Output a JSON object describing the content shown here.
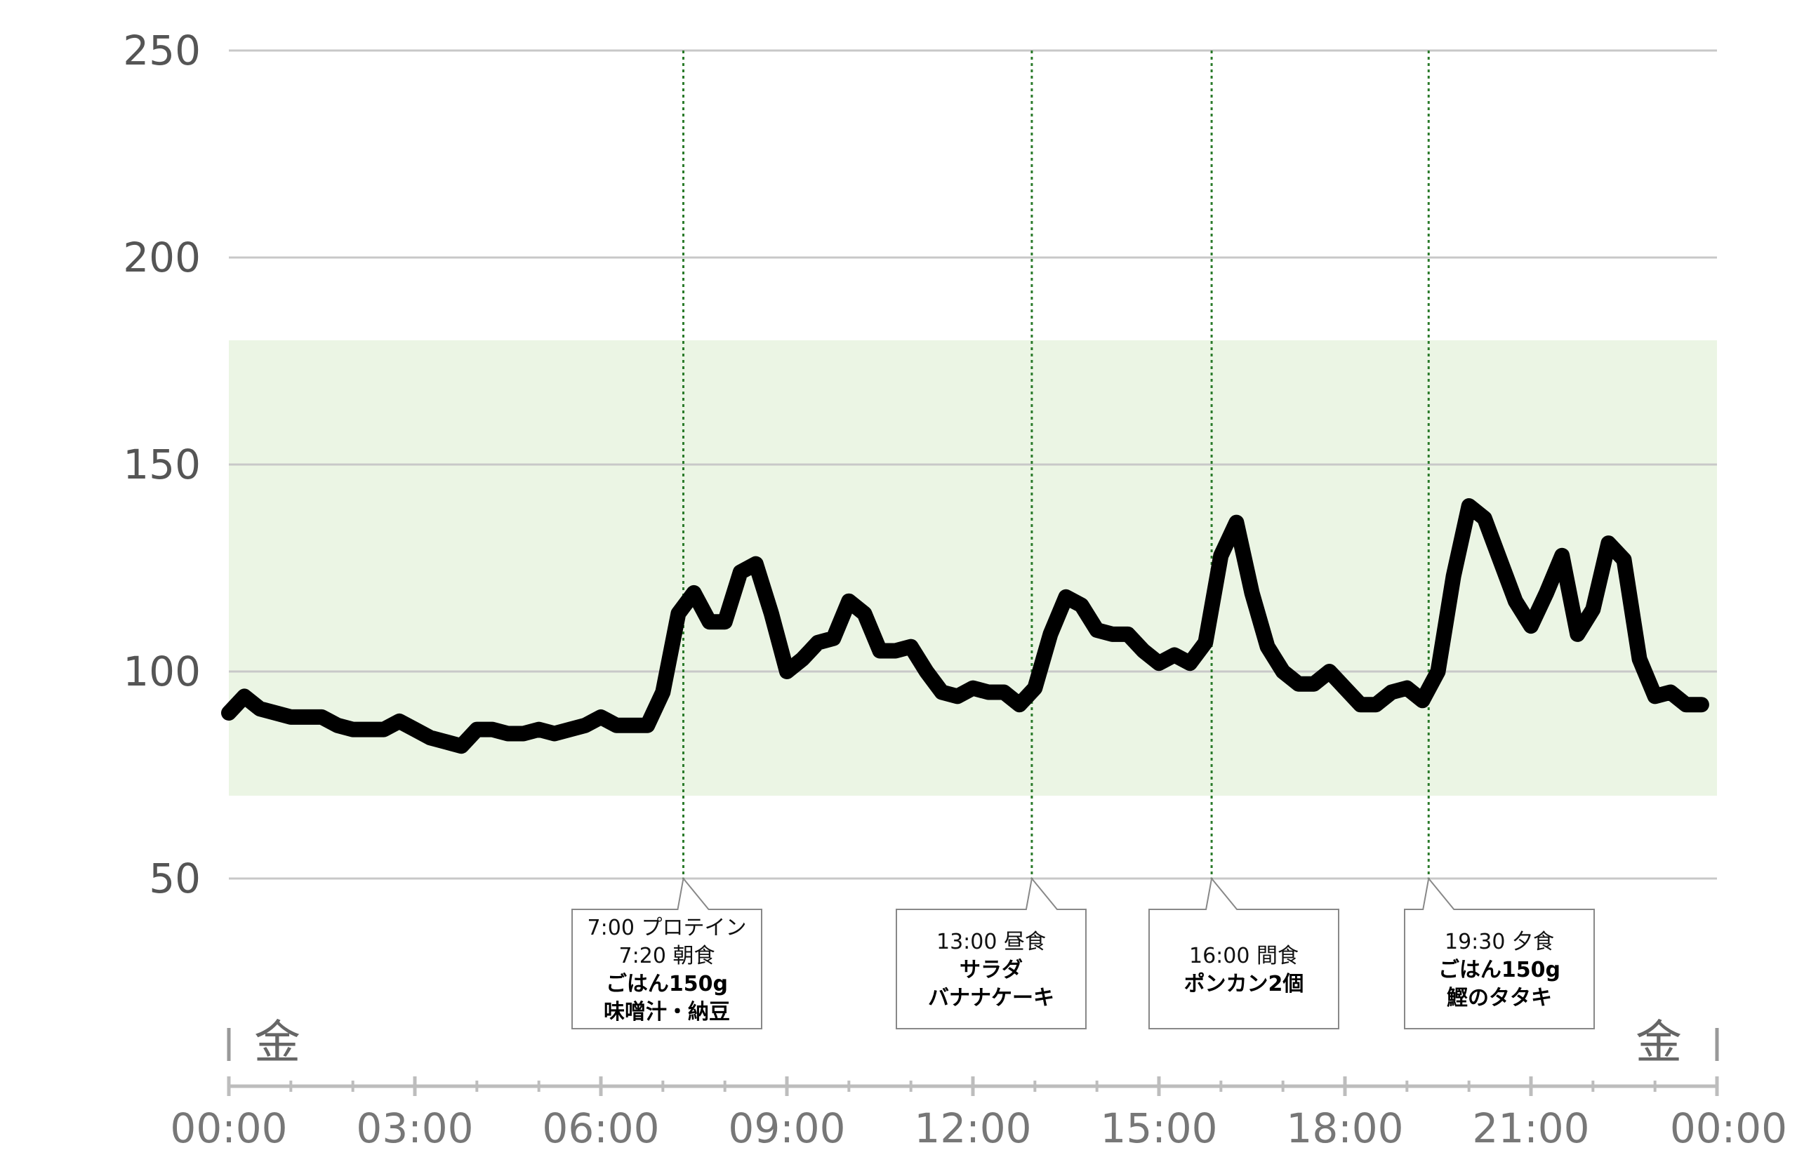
{
  "chart_data": {
    "type": "line",
    "title": "",
    "xlabel": "",
    "ylabel": "",
    "ylim": [
      30,
      250
    ],
    "yticks": [
      "250",
      "200",
      "150",
      "100",
      "50"
    ],
    "xlim_hours": [
      0,
      24
    ],
    "xticks": [
      "00:00",
      "03:00",
      "06:00",
      "09:00",
      "12:00",
      "15:00",
      "18:00",
      "21:00",
      "00:00"
    ],
    "day_labels": {
      "start": "金",
      "end": "金"
    },
    "target_range": [
      70,
      180
    ],
    "grid": true,
    "colors": {
      "line": "#000000",
      "band": "#ebf5e4",
      "grid": "#c8c8c8",
      "marker": "#2a7a2a"
    },
    "series": [
      {
        "x": [
          0.0,
          0.25,
          0.5,
          0.75,
          1.0,
          1.25,
          1.5,
          1.75,
          2.0,
          2.25,
          2.5,
          2.75,
          3.0,
          3.25,
          3.5,
          3.75,
          4.0,
          4.25,
          4.5,
          4.75,
          5.0,
          5.25,
          5.5,
          5.75,
          6.0,
          6.25,
          6.5,
          6.75,
          7.0,
          7.25,
          7.5,
          7.75,
          8.0,
          8.25,
          8.5,
          8.75,
          9.0,
          9.25,
          9.5,
          9.75,
          10.0,
          10.25,
          10.5,
          10.75,
          11.0,
          11.25,
          11.5,
          11.75,
          12.0,
          12.25,
          12.5,
          12.75,
          13.0,
          13.25,
          13.5,
          13.75,
          14.0,
          14.25,
          14.5,
          14.75,
          15.0,
          15.25,
          15.5,
          15.75,
          16.0,
          16.25,
          16.5,
          16.75,
          17.0,
          17.25,
          17.5,
          17.75,
          18.0,
          18.25,
          18.5,
          18.75,
          19.0,
          19.25,
          19.5,
          19.75,
          20.0,
          20.25,
          20.5,
          20.75,
          21.0,
          21.25,
          21.5,
          21.75,
          22.0,
          22.25,
          22.5,
          22.75,
          23.0,
          23.25,
          23.5,
          23.75
        ],
        "y": [
          90,
          94,
          91,
          90,
          89,
          89,
          89,
          87,
          86,
          86,
          86,
          88,
          86,
          84,
          83,
          82,
          86,
          86,
          85,
          85,
          86,
          85,
          86,
          87,
          89,
          87,
          87,
          87,
          95,
          114,
          119,
          112,
          112,
          124,
          126,
          114,
          100,
          103,
          107,
          108,
          117,
          114,
          105,
          105,
          106,
          100,
          95,
          94,
          96,
          95,
          95,
          92,
          96,
          109,
          118,
          116,
          110,
          109,
          109,
          105,
          102,
          104,
          102,
          107,
          128,
          136,
          119,
          106,
          100,
          97,
          97,
          100,
          96,
          92,
          92,
          95,
          96,
          93,
          100,
          123,
          140,
          137,
          127,
          117,
          111,
          119,
          128,
          109,
          115,
          131,
          127,
          103,
          94,
          95,
          92,
          92
        ]
      }
    ],
    "annotations": [
      {
        "time_hours": 7.33,
        "lines": [
          "7:00 プロテイン",
          "7:20 朝食",
          "ごはん150g",
          "味噌汁・納豆"
        ],
        "bold_from": 2
      },
      {
        "time_hours": 12.95,
        "lines": [
          "13:00 昼食",
          "サラダ",
          "バナナケーキ"
        ],
        "bold_from": 1
      },
      {
        "time_hours": 15.85,
        "lines": [
          "16:00 間食",
          "ポンカン2個"
        ],
        "bold_from": 1
      },
      {
        "time_hours": 19.35,
        "lines": [
          "19:30 夕食",
          "ごはん150g",
          "鰹のタタキ"
        ],
        "bold_from": 1
      }
    ]
  }
}
